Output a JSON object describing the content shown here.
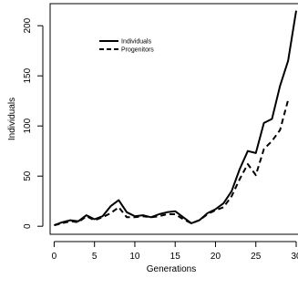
{
  "chart_data": {
    "type": "line",
    "title": "",
    "xlabel": "Generations",
    "ylabel": "Individuals",
    "xlim": [
      -0.5,
      30
    ],
    "ylim": [
      -8,
      222
    ],
    "xticks": [
      0,
      5,
      10,
      15,
      20,
      25,
      30
    ],
    "yticks": [
      0,
      50,
      100,
      150,
      200
    ],
    "legend_position": "top-left",
    "series": [
      {
        "name": "Individuals",
        "line_style": "solid",
        "color": "#000000",
        "x": [
          0,
          1,
          2,
          3,
          4,
          5,
          6,
          7,
          8,
          9,
          10,
          11,
          12,
          13,
          14,
          15,
          16,
          17,
          18,
          19,
          20,
          21,
          22,
          23,
          24,
          25,
          26,
          27,
          28,
          29,
          30
        ],
        "y": [
          1,
          4,
          6,
          5,
          11,
          7,
          10,
          20,
          26,
          14,
          10,
          11,
          9,
          12,
          14,
          15,
          9,
          3,
          6,
          13,
          17,
          23,
          35,
          57,
          75,
          73,
          103,
          107,
          140,
          165,
          215
        ]
      },
      {
        "name": "Progenitors",
        "line_style": "dashed",
        "color": "#000000",
        "x": [
          0,
          1,
          2,
          3,
          4,
          5,
          6,
          7,
          8,
          9,
          10,
          11,
          12,
          13,
          14,
          15,
          16,
          17,
          18,
          19,
          20,
          21,
          22,
          23,
          24,
          25,
          26,
          27,
          28,
          29
        ],
        "y": [
          1,
          3,
          5,
          4,
          10,
          6,
          9,
          13,
          19,
          9,
          9,
          10,
          9,
          10,
          12,
          12,
          7,
          3,
          6,
          12,
          16,
          19,
          30,
          47,
          62,
          51,
          77,
          85,
          96,
          126
        ]
      }
    ]
  }
}
